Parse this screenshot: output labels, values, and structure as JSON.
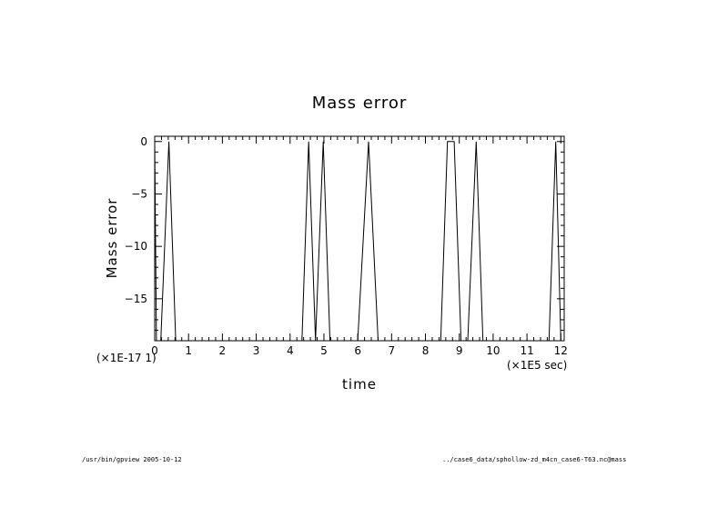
{
  "chart_data": {
    "type": "line",
    "title": "Mass error",
    "xlabel": "time",
    "ylabel": "Mass error",
    "x_scale_label": "(×1E5 sec)",
    "y_scale_label": "(×1E-17 1)",
    "xlim": [
      0,
      12.1
    ],
    "ylim": [
      -19,
      0.5
    ],
    "x_ticks": [
      0,
      1,
      2,
      3,
      4,
      5,
      6,
      7,
      8,
      9,
      10,
      11,
      12
    ],
    "x_tick_labels": [
      "0",
      "1",
      "2",
      "3",
      "4",
      "5",
      "6",
      "7",
      "8",
      "9",
      "10",
      "11",
      "12"
    ],
    "y_ticks": [
      0,
      -5,
      -10,
      -15
    ],
    "y_tick_labels": [
      "0",
      "−5",
      "−10",
      "−15"
    ],
    "grid": false,
    "series": [
      {
        "x": [
          0.0,
          0.05,
          0.18,
          0.42,
          0.62,
          4.35,
          4.55,
          4.75,
          4.98,
          5.18,
          6.0,
          6.32,
          6.6,
          8.45,
          8.65,
          8.85,
          9.05,
          9.25,
          9.5,
          9.7,
          11.65,
          11.85,
          12.0
        ],
        "y": [
          0,
          -19,
          -19,
          0,
          -19,
          -19,
          0,
          -19,
          0,
          -19,
          -19,
          0,
          -19,
          -19,
          0,
          0,
          -19,
          -19,
          0,
          -19,
          -19,
          0,
          -19
        ]
      }
    ]
  },
  "footer": {
    "left": "/usr/bin/gpview  2005-10-12",
    "right": "../case6_data/sphollow-zd_m4cn_case6-T63.nc@mass"
  }
}
